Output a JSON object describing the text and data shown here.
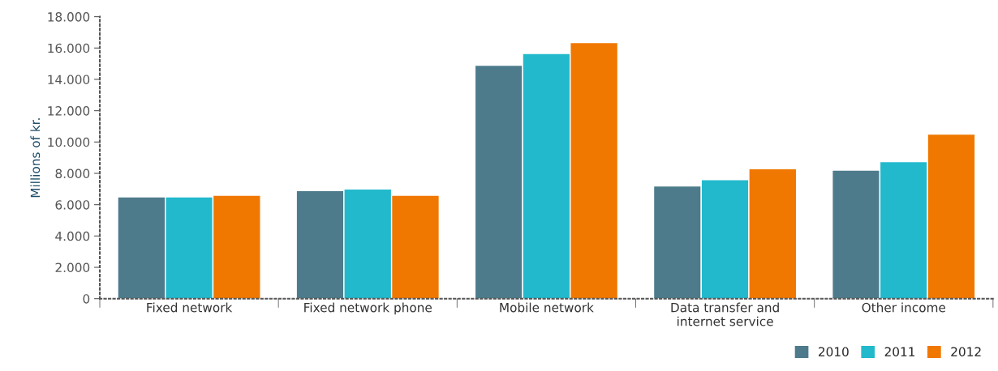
{
  "chart_data": {
    "type": "bar",
    "ylabel": "Millions of kr.",
    "categories": [
      "Fixed network",
      "Fixed network phone",
      "Mobile network",
      "Data transfer and\ninternet service",
      "Other income"
    ],
    "series": [
      {
        "name": "2010",
        "color": "#4e7b8b",
        "values": [
          6500,
          6900,
          14900,
          7200,
          8200
        ]
      },
      {
        "name": "2011",
        "color": "#22b9cc",
        "values": [
          6500,
          7000,
          15650,
          7600,
          8750
        ]
      },
      {
        "name": "2012",
        "color": "#f07800",
        "values": [
          6600,
          6600,
          16350,
          8300,
          10500
        ]
      }
    ],
    "ylim": [
      0,
      18000
    ],
    "yticks": [
      {
        "value": 0,
        "label": "0"
      },
      {
        "value": 2000,
        "label": "2.000"
      },
      {
        "value": 4000,
        "label": "4.000"
      },
      {
        "value": 6000,
        "label": "6.000"
      },
      {
        "value": 8000,
        "label": "8.000"
      },
      {
        "value": 10000,
        "label": "10.000"
      },
      {
        "value": 12000,
        "label": "12.000"
      },
      {
        "value": 14000,
        "label": "14.000"
      },
      {
        "value": 16000,
        "label": "16.000"
      },
      {
        "value": 18000,
        "label": "18.000"
      }
    ],
    "grid": false,
    "legend": "bottom right"
  }
}
